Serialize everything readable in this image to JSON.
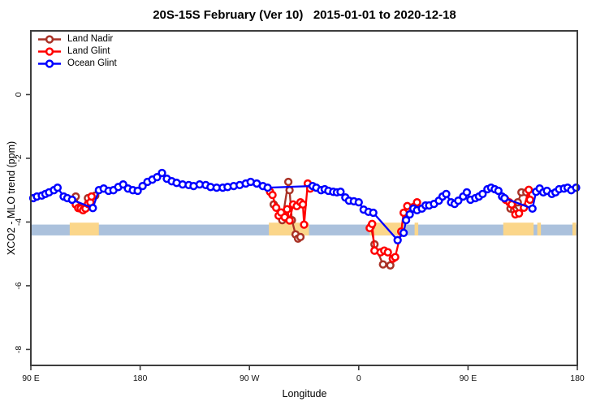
{
  "header": {
    "title": "20S-15S February (Ver 10)   2015-01-01 to 2020-12-18"
  },
  "chart_data": {
    "type": "line",
    "title": "20S-15S February (Ver 10)   2015-01-01 to 2020-12-18",
    "xlabel": "Longitude",
    "ylabel": "XCO2 - MLO trend (ppm)",
    "x_range": [
      0,
      450
    ],
    "ylim": [
      -8.5,
      2
    ],
    "grid": "off",
    "x_ticks": [
      {
        "t": 0,
        "label": "90 E"
      },
      {
        "t": 90,
        "label": "180"
      },
      {
        "t": 180,
        "label": "90 W"
      },
      {
        "t": 270,
        "label": "0"
      },
      {
        "t": 360,
        "label": "90 E"
      },
      {
        "t": 450,
        "label": "180"
      }
    ],
    "y_ticks": [
      {
        "v": 0,
        "label": "0"
      },
      {
        "v": -2,
        "label": "-2"
      },
      {
        "v": -4,
        "label": "-4"
      },
      {
        "v": -6,
        "label": "-6"
      },
      {
        "v": -8,
        "label": "-8"
      }
    ],
    "band": {
      "color": "#abc1dc",
      "top": -4.08,
      "bottom": -4.42
    },
    "patches": {
      "color": "#fbd68a",
      "top": -4.02,
      "bottom": -4.42,
      "ranges": [
        [
          32,
          56
        ],
        [
          196,
          229
        ],
        [
          279,
          309
        ],
        [
          316,
          319
        ],
        [
          389,
          414
        ],
        [
          417,
          420
        ],
        [
          446,
          449
        ]
      ]
    },
    "legend": {
      "position": "top-left",
      "entries": [
        "Land Nadir",
        "Land Glint",
        "Ocean Glint"
      ]
    },
    "series": [
      {
        "name": "Land Nadir",
        "color": "#a93226",
        "segments": [
          [
            [
              37,
              -3.2
            ],
            [
              40,
              -3.56
            ],
            [
              43,
              -3.63
            ],
            [
              47,
              -3.25
            ],
            [
              50,
              -3.2
            ],
            [
              53,
              -3.17
            ]
          ],
          [
            [
              200,
              -3.45
            ],
            [
              205,
              -3.81
            ],
            [
              207,
              -3.94
            ],
            [
              212,
              -2.74
            ],
            [
              213,
              -3.0
            ],
            [
              215,
              -3.94
            ],
            [
              218,
              -4.39
            ],
            [
              220,
              -4.52
            ],
            [
              222,
              -4.47
            ]
          ],
          [
            [
              280,
              -4.14
            ],
            [
              283,
              -4.7
            ],
            [
              290,
              -5.33
            ],
            [
              296,
              -5.36
            ]
          ],
          [
            [
              395,
              -3.58
            ],
            [
              398,
              -3.63
            ],
            [
              401,
              -3.38
            ],
            [
              404,
              -3.07
            ],
            [
              408,
              -3.07
            ]
          ]
        ]
      },
      {
        "name": "Land Glint",
        "color": "#ff0000",
        "segments": [
          [
            [
              34,
              -3.3
            ],
            [
              37,
              -3.45
            ],
            [
              39,
              -3.56
            ],
            [
              41,
              -3.58
            ],
            [
              43,
              -3.63
            ],
            [
              45,
              -3.58
            ],
            [
              47,
              -3.43
            ],
            [
              49,
              -3.38
            ],
            [
              50,
              -3.2
            ]
          ],
          [
            [
              197,
              -3.05
            ],
            [
              199,
              -3.15
            ],
            [
              202,
              -3.55
            ],
            [
              204,
              -3.8
            ],
            [
              206,
              -3.7
            ],
            [
              209,
              -3.85
            ],
            [
              211,
              -3.6
            ],
            [
              213,
              -3.95
            ],
            [
              216,
              -3.45
            ],
            [
              219,
              -3.5
            ],
            [
              222,
              -3.38
            ],
            [
              224,
              -3.45
            ],
            [
              225,
              -4.08
            ],
            [
              228,
              -2.79
            ],
            [
              230,
              -2.95
            ]
          ],
          [
            [
              279,
              -4.19
            ],
            [
              281,
              -4.06
            ],
            [
              283,
              -4.9
            ],
            [
              288,
              -4.95
            ],
            [
              291,
              -4.9
            ],
            [
              294,
              -4.95
            ],
            [
              298,
              -5.15
            ],
            [
              300,
              -5.1
            ],
            [
              305,
              -4.3
            ],
            [
              307,
              -3.71
            ],
            [
              310,
              -3.5
            ],
            [
              318,
              -3.38
            ]
          ],
          [
            [
              391,
              -3.3
            ],
            [
              394,
              -3.38
            ],
            [
              396,
              -3.45
            ],
            [
              399,
              -3.76
            ],
            [
              402,
              -3.73
            ],
            [
              406,
              -3.55
            ],
            [
              410,
              -2.99
            ],
            [
              411,
              -3.3
            ]
          ]
        ]
      },
      {
        "name": "Ocean Glint",
        "color": "#0000ff",
        "segments": [
          [
            [
              2,
              -3.25
            ],
            [
              5,
              -3.2
            ],
            [
              9,
              -3.17
            ],
            [
              12,
              -3.12
            ],
            [
              15,
              -3.07
            ],
            [
              19,
              -3.0
            ],
            [
              22,
              -2.92
            ],
            [
              27,
              -3.2
            ],
            [
              30,
              -3.25
            ],
            [
              34,
              -3.3
            ],
            [
              51,
              -3.56
            ],
            [
              56,
              -3.0
            ],
            [
              60,
              -2.95
            ],
            [
              64,
              -3.02
            ],
            [
              68,
              -3.0
            ],
            [
              72,
              -2.9
            ],
            [
              76,
              -2.82
            ],
            [
              80,
              -2.95
            ],
            [
              84,
              -3.0
            ],
            [
              88,
              -3.02
            ],
            [
              92,
              -2.87
            ],
            [
              96,
              -2.74
            ],
            [
              100,
              -2.67
            ],
            [
              104,
              -2.59
            ],
            [
              108,
              -2.46
            ],
            [
              112,
              -2.64
            ],
            [
              116,
              -2.72
            ],
            [
              120,
              -2.77
            ],
            [
              125,
              -2.82
            ],
            [
              130,
              -2.84
            ],
            [
              134,
              -2.87
            ],
            [
              139,
              -2.82
            ],
            [
              144,
              -2.84
            ],
            [
              148,
              -2.9
            ],
            [
              153,
              -2.92
            ],
            [
              158,
              -2.92
            ],
            [
              162,
              -2.9
            ],
            [
              167,
              -2.87
            ],
            [
              172,
              -2.84
            ],
            [
              177,
              -2.79
            ],
            [
              181,
              -2.74
            ],
            [
              186,
              -2.79
            ],
            [
              191,
              -2.87
            ],
            [
              195,
              -2.92
            ],
            [
              232,
              -2.87
            ],
            [
              235,
              -2.92
            ],
            [
              239,
              -3.0
            ],
            [
              242,
              -2.97
            ],
            [
              245,
              -3.02
            ],
            [
              249,
              -3.05
            ],
            [
              252,
              -3.07
            ],
            [
              255,
              -3.05
            ],
            [
              259,
              -3.23
            ],
            [
              262,
              -3.33
            ],
            [
              266,
              -3.35
            ],
            [
              270,
              -3.38
            ],
            [
              274,
              -3.61
            ],
            [
              278,
              -3.68
            ],
            [
              282,
              -3.71
            ],
            [
              302,
              -4.57
            ],
            [
              307,
              -4.34
            ],
            [
              309,
              -3.94
            ],
            [
              312,
              -3.76
            ],
            [
              315,
              -3.58
            ],
            [
              318,
              -3.63
            ],
            [
              322,
              -3.58
            ],
            [
              325,
              -3.48
            ],
            [
              328,
              -3.48
            ],
            [
              332,
              -3.43
            ],
            [
              336,
              -3.33
            ],
            [
              339,
              -3.2
            ],
            [
              342,
              -3.12
            ],
            [
              346,
              -3.38
            ],
            [
              349,
              -3.43
            ],
            [
              352,
              -3.33
            ],
            [
              356,
              -3.2
            ],
            [
              359,
              -3.07
            ],
            [
              362,
              -3.3
            ],
            [
              366,
              -3.25
            ],
            [
              369,
              -3.2
            ],
            [
              372,
              -3.12
            ],
            [
              376,
              -2.97
            ],
            [
              379,
              -2.92
            ],
            [
              382,
              -2.97
            ],
            [
              385,
              -3.02
            ],
            [
              388,
              -3.2
            ],
            [
              390,
              -3.25
            ],
            [
              413,
              -3.58
            ],
            [
              416,
              -3.05
            ],
            [
              419,
              -2.95
            ],
            [
              422,
              -3.07
            ],
            [
              425,
              -3.02
            ],
            [
              429,
              -3.12
            ],
            [
              432,
              -3.07
            ],
            [
              435,
              -2.97
            ],
            [
              439,
              -2.95
            ],
            [
              442,
              -2.92
            ],
            [
              445,
              -3.0
            ],
            [
              449,
              -2.92
            ]
          ]
        ]
      }
    ]
  }
}
